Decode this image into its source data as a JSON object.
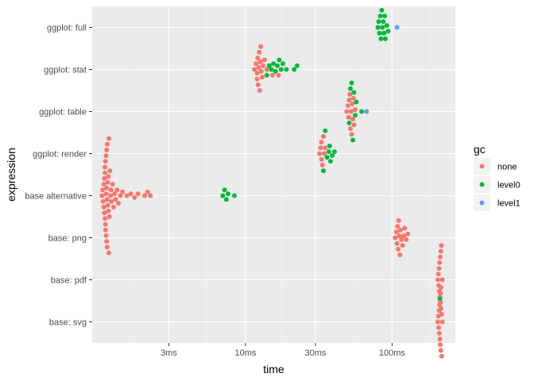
{
  "chart_data": {
    "type": "scatter",
    "subtype": "beeswarm",
    "xlabel": "time",
    "ylabel": "expression",
    "x_scale": "log10",
    "x_unit": "ms",
    "xlim": [
      0.9,
      270
    ],
    "x_ticks": [
      {
        "value": 3,
        "label": "3ms"
      },
      {
        "value": 10,
        "label": "10ms"
      },
      {
        "value": 30,
        "label": "30ms"
      },
      {
        "value": 100,
        "label": "100ms"
      }
    ],
    "categories": [
      "ggplot: full",
      "ggplot: stat",
      "ggplot: table",
      "ggplot: render",
      "base alternative",
      "base: png",
      "base: pdf",
      "base: svg"
    ],
    "grid": true,
    "legend": {
      "title": "gc",
      "position": "right",
      "entries": [
        {
          "name": "none",
          "color": "#F8766D"
        },
        {
          "name": "level0",
          "color": "#00BA38"
        },
        {
          "name": "level1",
          "color": "#619CFF"
        }
      ]
    },
    "series": [
      {
        "name": "none",
        "color": "#F8766D",
        "points": [
          {
            "expression": "ggplot: stat",
            "time_ms": [
              11.5,
              11.8,
              12.0,
              12.0,
              12.1,
              12.2,
              12.3,
              12.4,
              12.5,
              12.6,
              12.7,
              12.8,
              13.0,
              13.2,
              13.5,
              14.0,
              15.3,
              16.8
            ]
          },
          {
            "expression": "ggplot: table",
            "time_ms": [
              49.0,
              50.0,
              50.5,
              51.0,
              51.5,
              52.0,
              52.5,
              53.0,
              53.5,
              54.0,
              54.5,
              55.0,
              56.0
            ]
          },
          {
            "expression": "ggplot: render",
            "time_ms": [
              32.0,
              32.5,
              33.0,
              33.0,
              33.5,
              34.0,
              34.5,
              35.0
            ]
          },
          {
            "expression": "base alternative",
            "time_ms": [
              1.05,
              1.06,
              1.07,
              1.08,
              1.08,
              1.09,
              1.09,
              1.1,
              1.1,
              1.1,
              1.11,
              1.11,
              1.11,
              1.12,
              1.12,
              1.12,
              1.13,
              1.13,
              1.13,
              1.14,
              1.14,
              1.14,
              1.15,
              1.15,
              1.16,
              1.16,
              1.17,
              1.17,
              1.18,
              1.19,
              1.2,
              1.21,
              1.22,
              1.24,
              1.26,
              1.28,
              1.3,
              1.33,
              1.36,
              1.4,
              1.45,
              1.55,
              1.65,
              1.75,
              1.85,
              2.05,
              2.15,
              2.25
            ]
          },
          {
            "expression": "base: png",
            "time_ms": [
              105,
              107,
              108,
              109,
              110,
              111,
              112,
              113,
              114,
              116,
              118,
              120,
              122,
              125,
              128
            ]
          },
          {
            "expression": "base: pdf",
            "time_ms": [
              205,
              207,
              208,
              209,
              210,
              211,
              212,
              213,
              214,
              215,
              216,
              217,
              218,
              220
            ]
          },
          {
            "expression": "base: svg",
            "time_ms": [
              205,
              207,
              208,
              209,
              210,
              211,
              212,
              213,
              214,
              215,
              216,
              218,
              220
            ]
          }
        ]
      },
      {
        "name": "level0",
        "color": "#00BA38",
        "points": [
          {
            "expression": "ggplot: full",
            "time_ms": [
              80,
              81,
              82,
              83,
              84,
              85,
              86,
              87,
              88,
              89,
              90,
              92,
              94
            ]
          },
          {
            "expression": "ggplot: stat",
            "time_ms": [
              14.0,
              14.5,
              15.0,
              15.5,
              16.0,
              16.5,
              17.0,
              17.5,
              18.0,
              19.0,
              21.5,
              22.5
            ]
          },
          {
            "expression": "ggplot: table",
            "time_ms": [
              51.0,
              52.0,
              53.0,
              54.0,
              55.0,
              56.0,
              57.0,
              62.0
            ]
          },
          {
            "expression": "ggplot: render",
            "time_ms": [
              34.0,
              35.0,
              36.0,
              37.0,
              37.5,
              38.0,
              39.0,
              40.5
            ]
          },
          {
            "expression": "base alternative",
            "time_ms": [
              7.0,
              7.2,
              7.4,
              7.6,
              8.4
            ]
          },
          {
            "expression": "base: svg",
            "time_ms": [
              212
            ]
          }
        ]
      },
      {
        "name": "level1",
        "color": "#619CFF",
        "points": [
          {
            "expression": "ggplot: full",
            "time_ms": [
              108
            ]
          },
          {
            "expression": "ggplot: table",
            "time_ms": [
              67
            ]
          }
        ]
      }
    ]
  }
}
